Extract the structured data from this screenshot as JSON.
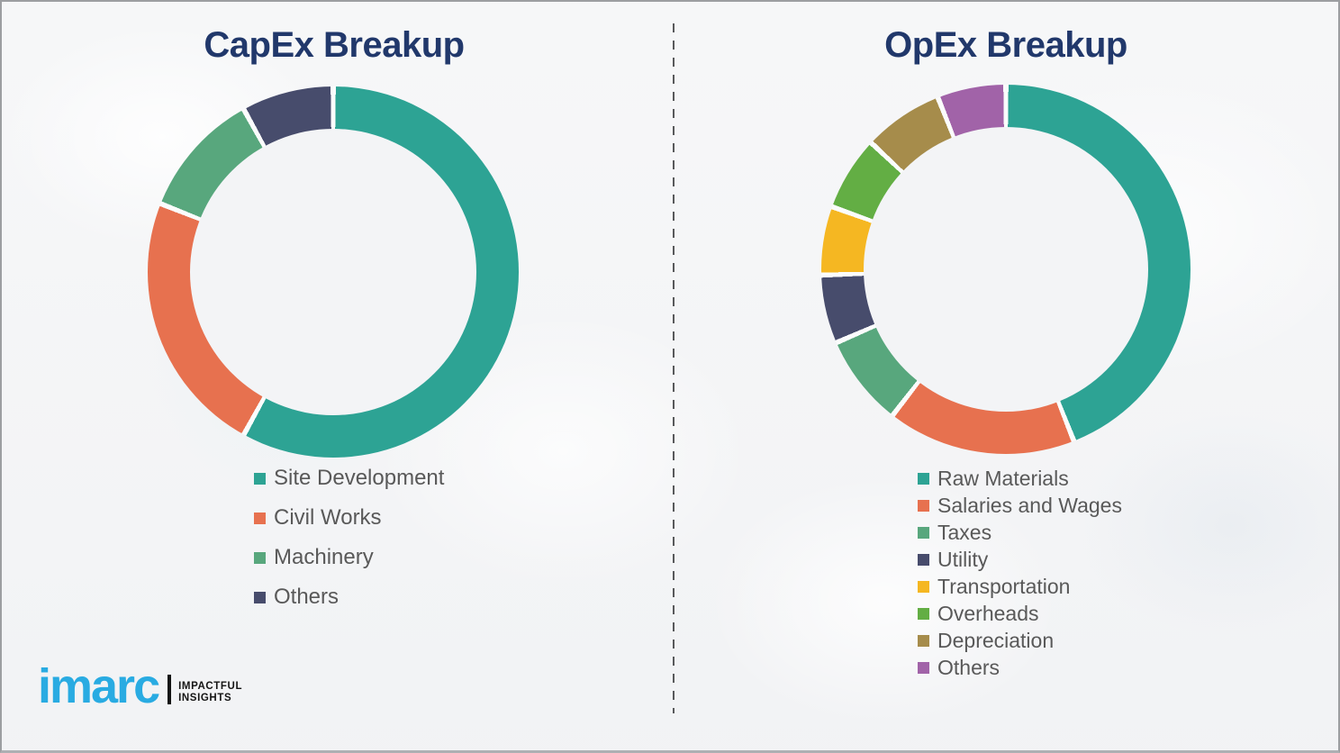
{
  "page": {
    "background_color": "#f2f3f5",
    "divider_style": "vertical-dashed",
    "divider_color": "#58595b"
  },
  "titles": {
    "title_color": "#21386b",
    "legend_text_color": "#595959"
  },
  "chart_data": [
    {
      "type": "pie",
      "variant": "donut",
      "title": "CapEx Breakup",
      "start_angle_deg": 0,
      "direction": "clockwise",
      "units": "percent (estimated from arc angles, no data labels shown)",
      "legend_position": "below-left",
      "segments": [
        {
          "label": "Site Development",
          "value": 58,
          "color": "#2da394"
        },
        {
          "label": "Civil Works",
          "value": 23,
          "color": "#e7714f"
        },
        {
          "label": "Machinery",
          "value": 11,
          "color": "#58a77d"
        },
        {
          "label": "Others",
          "value": 8,
          "color": "#474c6c"
        }
      ]
    },
    {
      "type": "pie",
      "variant": "donut",
      "title": "OpEx Breakup",
      "start_angle_deg": 0,
      "direction": "clockwise",
      "units": "percent (estimated from arc angles, no data labels shown)",
      "legend_position": "below-left",
      "segments": [
        {
          "label": "Raw Materials",
          "value": 44,
          "color": "#2da394"
        },
        {
          "label": "Salaries and Wages",
          "value": 16.5,
          "color": "#e7714f"
        },
        {
          "label": "Taxes",
          "value": 8,
          "color": "#58a77d"
        },
        {
          "label": "Utility",
          "value": 6,
          "color": "#474c6c"
        },
        {
          "label": "Transportation",
          "value": 6,
          "color": "#f5b722"
        },
        {
          "label": "Overheads",
          "value": 6.5,
          "color": "#63ae44"
        },
        {
          "label": "Depreciation",
          "value": 7,
          "color": "#a68c4b"
        },
        {
          "label": "Others",
          "value": 6,
          "color": "#a163a8"
        }
      ]
    }
  ],
  "logo": {
    "wordmark": "imarc",
    "tagline": "IMPACTFUL\nINSIGHTS",
    "brand_color": "#29abe2"
  }
}
